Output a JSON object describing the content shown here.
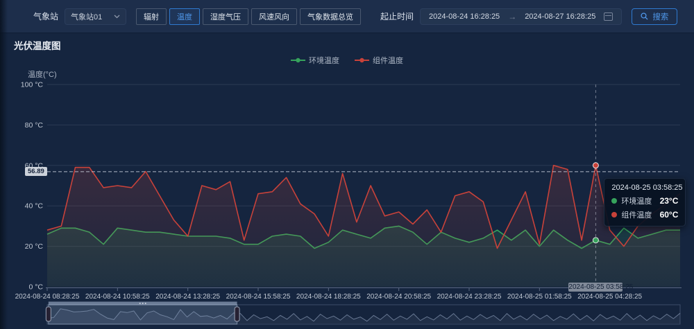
{
  "header": {
    "station_label": "气象站",
    "station_value": "气象站01",
    "tabs": [
      {
        "label": "辐射",
        "active": false
      },
      {
        "label": "温度",
        "active": true
      },
      {
        "label": "湿度气压",
        "active": false
      },
      {
        "label": "风速风向",
        "active": false
      },
      {
        "label": "气象数据总览",
        "active": false
      }
    ],
    "range_label": "起止时间",
    "start_time": "2024-08-24 16:28:25",
    "arrow": "→",
    "end_time": "2024-08-27 16:28:25",
    "search_label": "搜索"
  },
  "chart": {
    "title": "光伏温度图",
    "y_axis_name": "温度(°C)",
    "mark_label": "56.89",
    "pointer_label": "2024-08-25 03:58:25",
    "tooltip": {
      "title": "2024-08-25 03:58:25",
      "rows": [
        {
          "color": "#36a35c",
          "label": "环境温度",
          "value": "23°C"
        },
        {
          "color": "#c8423a",
          "label": "组件温度",
          "value": "60°C"
        }
      ]
    }
  },
  "chart_data": {
    "type": "line",
    "title": "光伏温度图",
    "ylabel": "温度(°C)",
    "ylim": [
      0,
      100
    ],
    "y_ticks": [
      0,
      20,
      40,
      60,
      80,
      100
    ],
    "y_tick_unit": " °C",
    "grid": true,
    "legend_position": "top-center",
    "mark_line_value": 56.89,
    "hover_index": 39,
    "x_tick_every": 5,
    "x": [
      "2024-08-24 08:28:25",
      "2024-08-24 08:58:25",
      "2024-08-24 09:28:25",
      "2024-08-24 09:58:25",
      "2024-08-24 10:28:25",
      "2024-08-24 10:58:25",
      "2024-08-24 11:28:25",
      "2024-08-24 11:58:25",
      "2024-08-24 12:28:25",
      "2024-08-24 12:58:25",
      "2024-08-24 13:28:25",
      "2024-08-24 13:58:25",
      "2024-08-24 14:28:25",
      "2024-08-24 14:58:25",
      "2024-08-24 15:28:25",
      "2024-08-24 15:58:25",
      "2024-08-24 16:28:25",
      "2024-08-24 16:58:25",
      "2024-08-24 17:28:25",
      "2024-08-24 17:58:25",
      "2024-08-24 18:28:25",
      "2024-08-24 18:58:25",
      "2024-08-24 19:28:25",
      "2024-08-24 19:58:25",
      "2024-08-24 20:28:25",
      "2024-08-24 20:58:25",
      "2024-08-24 21:28:25",
      "2024-08-24 21:58:25",
      "2024-08-24 22:28:25",
      "2024-08-24 22:58:25",
      "2024-08-24 23:28:25",
      "2024-08-24 23:58:25",
      "2024-08-25 00:28:25",
      "2024-08-25 00:58:25",
      "2024-08-25 01:28:25",
      "2024-08-25 01:58:25",
      "2024-08-25 02:28:25",
      "2024-08-25 02:58:25",
      "2024-08-25 03:28:25",
      "2024-08-25 03:58:25",
      "2024-08-25 04:28:25",
      "2024-08-25 04:58:25",
      "2024-08-25 05:28:25",
      "2024-08-25 05:58:25",
      "2024-08-25 06:28:25",
      "2024-08-25 06:58:25"
    ],
    "series": [
      {
        "name": "环境温度",
        "color": "#36a35c",
        "values": [
          26,
          29,
          29,
          27,
          21,
          29,
          28,
          27,
          27,
          26,
          25,
          25,
          25,
          24,
          21,
          21,
          25,
          26,
          25,
          19,
          22,
          28,
          26,
          24,
          29,
          30,
          27,
          21,
          27,
          24,
          22,
          24,
          28,
          23,
          28,
          20,
          28,
          23,
          19,
          23,
          21,
          29,
          24,
          26,
          28,
          28
        ]
      },
      {
        "name": "组件温度",
        "color": "#c8423a",
        "values": [
          28,
          30,
          59,
          59,
          49,
          50,
          49,
          57,
          45,
          33,
          25,
          50,
          48,
          52,
          23,
          46,
          47,
          54,
          41,
          36,
          25,
          56,
          32,
          50,
          35,
          37,
          31,
          38,
          27,
          45,
          47,
          42,
          19,
          33,
          47,
          21,
          60,
          58,
          23,
          60,
          28,
          20,
          30,
          36,
          41,
          46
        ]
      }
    ],
    "slider": {
      "window": [
        0.002,
        0.3
      ],
      "profile": [
        28,
        32,
        59,
        55,
        49,
        50,
        52,
        57,
        42,
        30,
        25,
        50,
        47,
        52,
        24,
        46,
        52,
        40,
        34,
        25,
        56,
        33,
        50,
        35,
        37,
        30,
        38,
        27,
        46,
        44,
        22,
        40,
        28,
        34,
        22,
        38,
        26,
        44,
        24,
        35,
        20,
        42,
        28,
        36,
        23,
        40,
        26,
        33,
        20,
        38,
        25,
        42,
        23,
        36,
        26,
        43,
        22,
        34,
        24,
        40,
        27,
        44,
        23,
        36,
        25,
        41,
        28,
        38,
        22,
        44,
        26,
        37,
        24,
        42,
        27,
        39,
        22,
        35,
        26,
        43,
        24,
        38,
        21,
        41,
        27,
        36,
        23,
        44,
        25,
        39,
        22,
        37,
        26,
        42,
        28,
        45
      ]
    }
  }
}
